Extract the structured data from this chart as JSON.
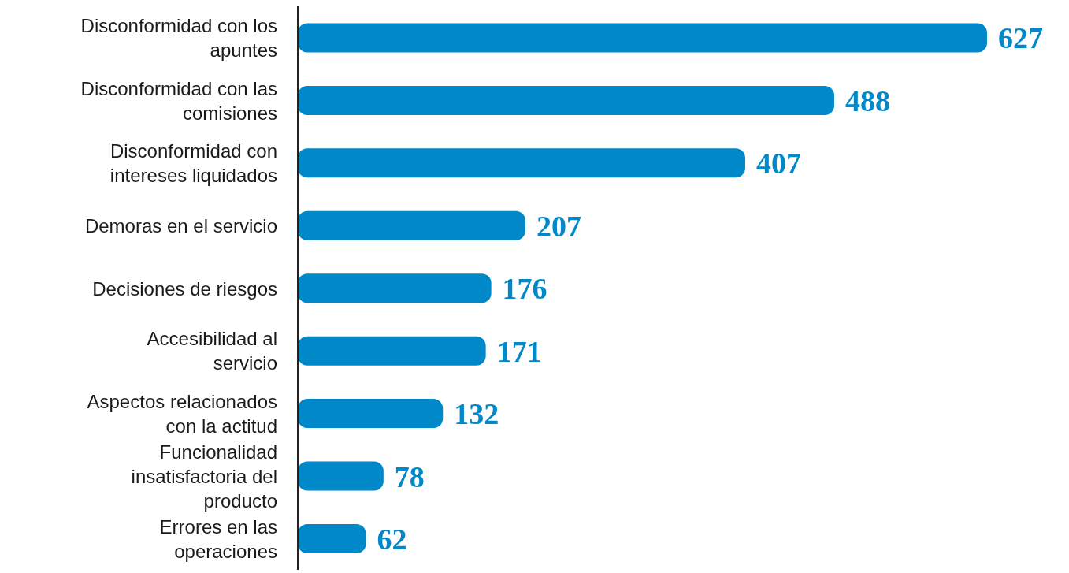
{
  "chart_data": {
    "type": "bar",
    "orientation": "horizontal",
    "categories": [
      "Disconformidad con los apuntes",
      "Disconformidad con las comisiones",
      "Disconformidad con intereses liquidados",
      "Demoras en el servicio",
      "Decisiones de riesgos",
      "Accesibilidad al servicio",
      "Aspectos relacionados con la actitud",
      "Funcionalidad insatisfactoria del producto",
      "Errores en las operaciones"
    ],
    "values": [
      627,
      488,
      407,
      207,
      176,
      171,
      132,
      78,
      62
    ],
    "color": "#0088c8",
    "data_labels": true
  }
}
